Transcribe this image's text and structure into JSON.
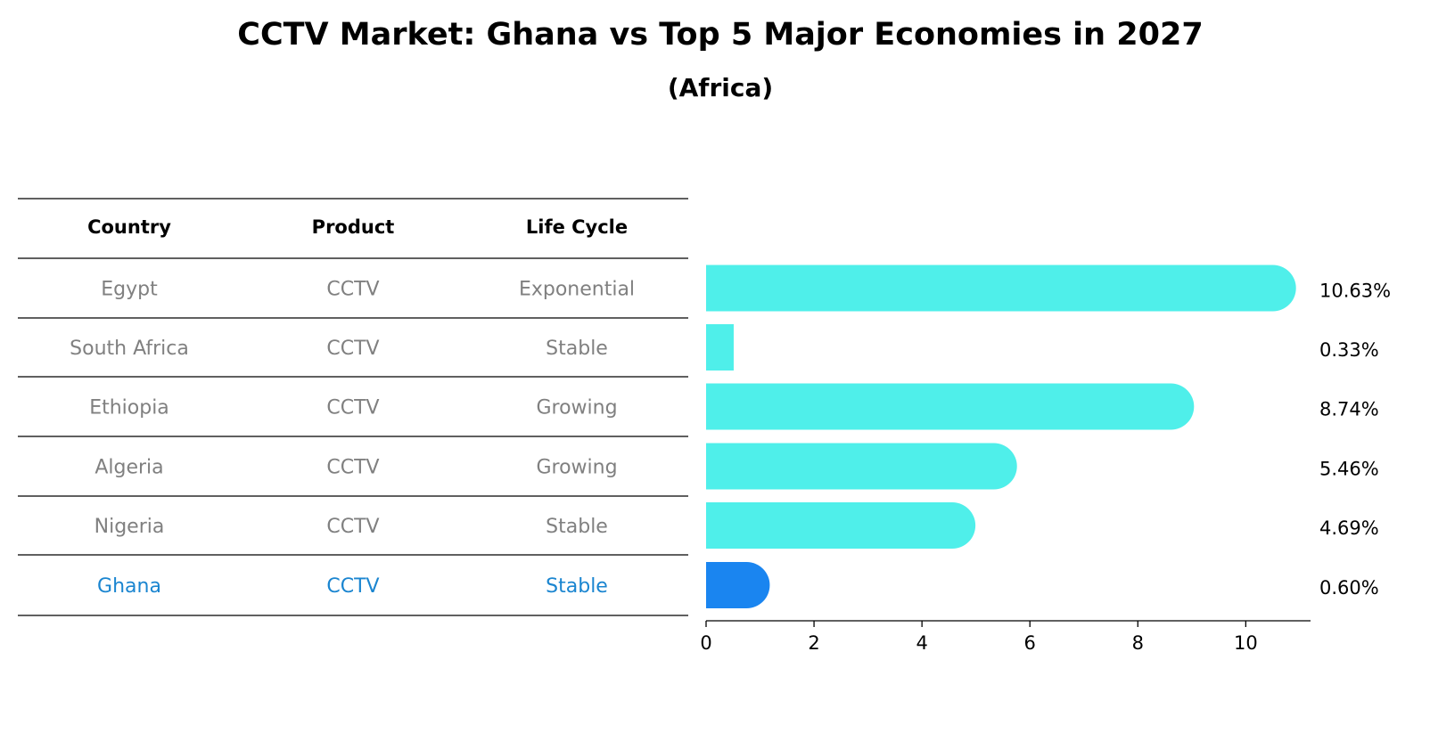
{
  "chart_data": {
    "type": "bar",
    "orientation": "horizontal",
    "title": "CCTV Market: Ghana vs Top 5 Major Economies in 2027",
    "subtitle": "(Africa)",
    "table_headers": [
      "Country",
      "Product",
      "Life Cycle"
    ],
    "categories": [
      "Egypt",
      "South Africa",
      "Ethiopia",
      "Algeria",
      "Nigeria",
      "Ghana"
    ],
    "product": [
      "CCTV",
      "CCTV",
      "CCTV",
      "CCTV",
      "CCTV",
      "CCTV"
    ],
    "life_cycle": [
      "Exponential",
      "Stable",
      "Growing",
      "Growing",
      "Stable",
      "Stable"
    ],
    "values": [
      10.63,
      0.33,
      8.74,
      5.46,
      4.69,
      0.6
    ],
    "value_labels": [
      "10.63%",
      "0.33%",
      "8.74%",
      "5.46%",
      "4.69%",
      "0.60%"
    ],
    "highlight": "Ghana",
    "xlim": [
      0,
      11.2
    ],
    "xticks": [
      0,
      2,
      4,
      6,
      8,
      10
    ],
    "xlabel": "",
    "ylabel": "",
    "colors": {
      "bar": "#4FEFEA",
      "highlight_bar": "#1A85F0",
      "row_text": "#808080",
      "highlight_text": "#1A85D0",
      "rule": "#000000"
    }
  }
}
